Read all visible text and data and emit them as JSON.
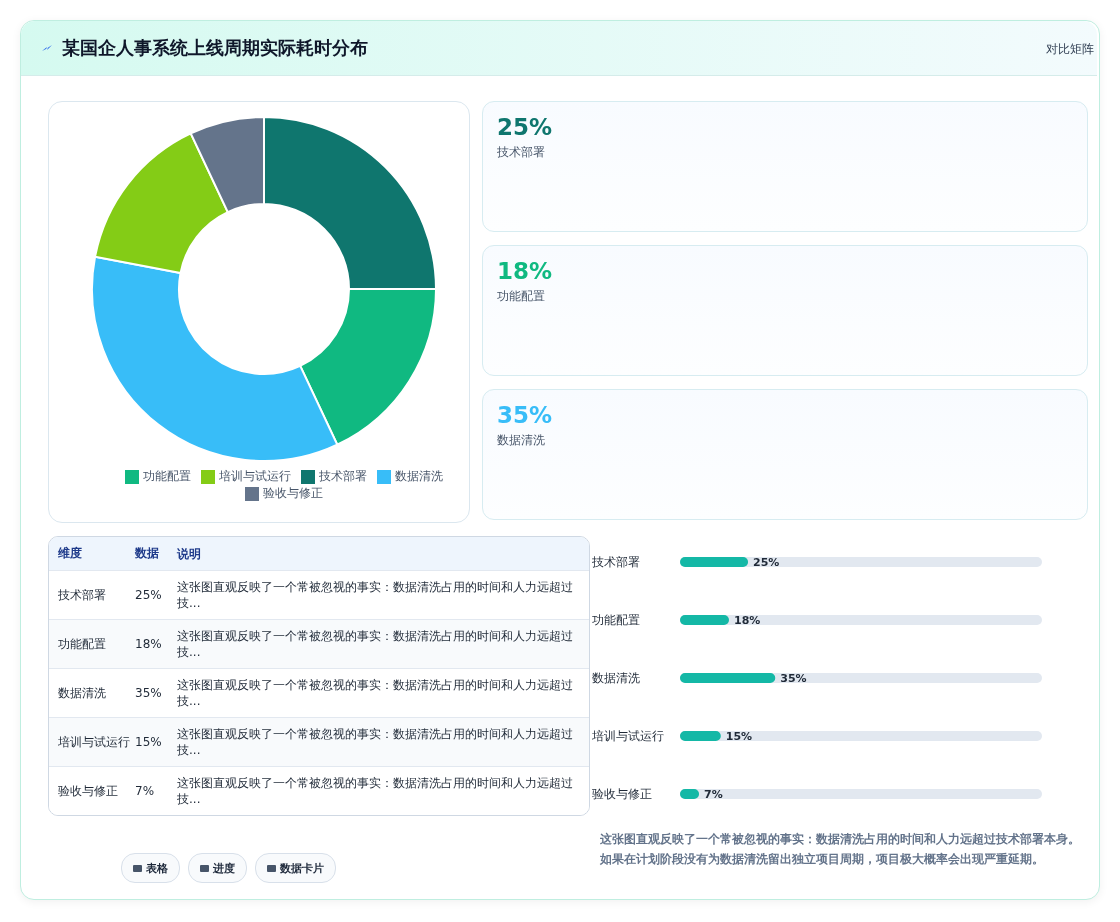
{
  "chart_data": [
    {
      "type": "donut",
      "title": "某国企人事系统上线周期实际耗时分布",
      "annotations": [
        "对比矩阵",
        "表格",
        "进度",
        "数据卡片"
      ],
      "categories": [
        "技术部署",
        "功能配置",
        "数据清洗",
        "培训与试运行",
        "验收与修正"
      ],
      "values": [
        25,
        18,
        35,
        15,
        7
      ],
      "colors": [
        "#0f766e",
        "#10b981",
        "#38bdf8",
        "#84cc16",
        "#64748b"
      ],
      "legend": "bottom"
    },
    {
      "type": "other",
      "annotations": [
        "25%",
        "技术部署",
        "18%",
        "功能配置",
        "35%",
        "数据清洗"
      ]
    },
    {
      "type": "other",
      "annotations": [
        "维度",
        "数据",
        "说明",
        "技术部署",
        "25%",
        "这张图直观反映了一个常被忽视的事实：数据清洗占用的时间和人力远超过技...",
        "功能配置",
        "18%",
        "这张图直观反映了一个常被忽视的事实：数据清洗占用的时间和人力远超过技...",
        "数据清洗",
        "35%",
        "这张图直观反映了一个常被忽视的事实：数据清洗占用的时间和人力远超过技...",
        "培训与试运行",
        "15%",
        "这张图直观反映了一个常被忽视的事实：数据清洗占用的时间和人力远超过技...",
        "验收与修正",
        "7%",
        "这张图直观反映了一个常被忽视的事实：数据清洗占用的时间和人力远超过技..."
      ]
    },
    {
      "type": "bar",
      "orientation": "horizontal",
      "categories": [
        "技术部署",
        "功能配置",
        "数据清洗",
        "培训与试运行",
        "验收与修正"
      ],
      "values": [
        25,
        18,
        35,
        15,
        7
      ],
      "color": "#14b8a6",
      "value_labels": [
        "25%",
        "18%",
        "35%",
        "15%",
        "7%"
      ],
      "annotations": [
        "这张图直观反映了一个常被忽视的事实：数据清洗占用的时间和人力远超过技术部署本身。如果在计划阶段没有为数据清洗留出独立项目周期，项目极大概率会出现严重延期。"
      ]
    }
  ]
}
